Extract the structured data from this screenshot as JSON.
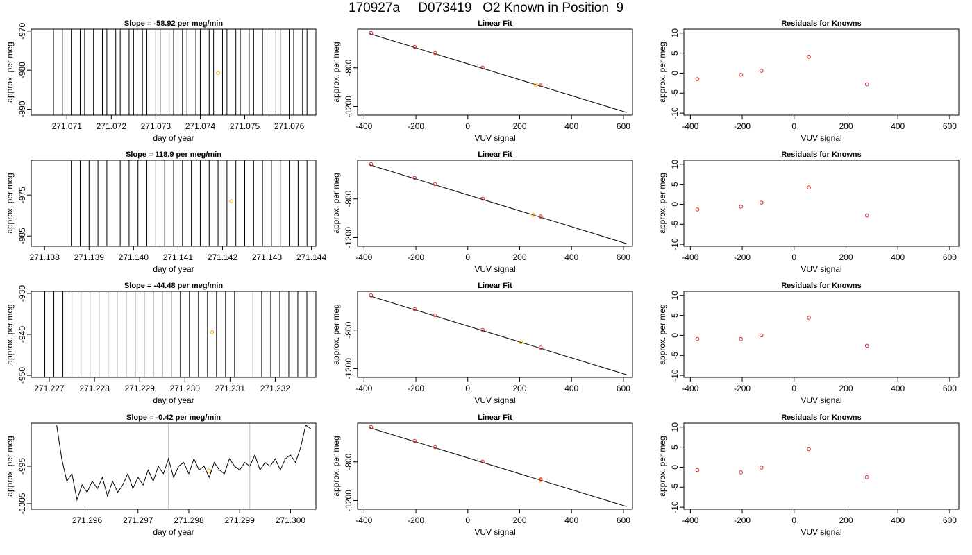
{
  "figure": {
    "title": "170927a     D073419   O2 Known in Position  9"
  },
  "colors": {
    "axis": "#000000",
    "trace": "#000000",
    "marker_open": "#ffa500",
    "marker_known": "#d62728",
    "vline": "#bebebe"
  },
  "chart_data": [
    {
      "type": "line",
      "row": 0,
      "col": 0,
      "title": "Slope =  -58.92  per meg/min",
      "xlabel": "day of year",
      "ylabel": "approx. per meg",
      "xlim": [
        271.0702,
        271.0766
      ],
      "ylim": [
        -991.5,
        -969.5
      ],
      "xticks": [
        "271.071",
        "271.072",
        "271.073",
        "271.074",
        "271.075",
        "271.076"
      ],
      "xtick_values": [
        271.071,
        271.072,
        271.073,
        271.074,
        271.075,
        271.076
      ],
      "yticks": [
        "-970",
        "-980",
        "-990"
      ],
      "ytick_values": [
        -970,
        -980,
        -990
      ],
      "vlines": [
        271.0735
      ],
      "marker": {
        "x": 271.0744,
        "y": -980.7
      },
      "trace_style": "spikes",
      "spike_x": [
        271.0707,
        271.0709,
        271.0711,
        271.0713,
        271.0714,
        271.0716,
        271.0718,
        271.0719,
        271.0721,
        271.0722,
        271.0724,
        271.0725,
        271.0727,
        271.0728,
        271.073,
        271.0731,
        271.0733,
        271.0734,
        271.0736,
        271.0737,
        271.0739,
        271.074,
        271.0742,
        271.0743,
        271.0745,
        271.0746,
        271.0748,
        271.0749,
        271.0751,
        271.0752,
        271.0754,
        271.0755,
        271.0757,
        271.0758,
        271.076,
        271.0761,
        271.0763,
        271.0764
      ]
    },
    {
      "type": "line",
      "row": 1,
      "col": 0,
      "title": "Slope =  118.9  per meg/min",
      "xlabel": "day of year",
      "ylabel": "approx. per meg",
      "xlim": [
        271.1377,
        271.1441
      ],
      "ylim": [
        -987.5,
        -966.5
      ],
      "xticks": [
        "271.138",
        "271.139",
        "271.140",
        "271.141",
        "271.142",
        "271.143",
        "271.144"
      ],
      "xtick_values": [
        271.138,
        271.139,
        271.14,
        271.141,
        271.142,
        271.143,
        271.144
      ],
      "yticks": [
        "-975",
        "-985"
      ],
      "ytick_values": [
        -975,
        -985
      ],
      "vlines": [],
      "marker": {
        "x": 271.1422,
        "y": -976.5
      },
      "trace_style": "spikes",
      "spike_x": [
        271.1386,
        271.1388,
        271.139,
        271.1392,
        271.1394,
        271.1397,
        271.1399,
        271.1401,
        271.1403,
        271.1405,
        271.1407,
        271.1409,
        271.1411,
        271.1413,
        271.1415,
        271.1417,
        271.1419,
        271.1421,
        271.1423,
        271.1425,
        271.1427,
        271.1429,
        271.1431,
        271.1433,
        271.1435,
        271.1437,
        271.1439
      ]
    },
    {
      "type": "line",
      "row": 2,
      "col": 0,
      "title": "Slope =  -44.48  per meg/min",
      "xlabel": "day of year",
      "ylabel": "approx. per meg",
      "xlim": [
        271.2266,
        271.2329
      ],
      "ylim": [
        -950.5,
        -929.5
      ],
      "xticks": [
        "271.227",
        "271.228",
        "271.229",
        "271.230",
        "271.231",
        "271.232"
      ],
      "xtick_values": [
        271.227,
        271.228,
        271.229,
        271.23,
        271.231,
        271.232
      ],
      "yticks": [
        "-930",
        "-940",
        "-950"
      ],
      "ytick_values": [
        -930,
        -940,
        -950
      ],
      "vlines": [
        271.2315
      ],
      "marker": {
        "x": 271.2306,
        "y": -939.5
      },
      "trace_style": "spikes",
      "spike_x": [
        271.2269,
        271.2271,
        271.2273,
        271.2275,
        271.2277,
        271.2279,
        271.2281,
        271.2283,
        271.2285,
        271.2287,
        271.2289,
        271.2291,
        271.2293,
        271.2295,
        271.2297,
        271.2299,
        271.2301,
        271.2303,
        271.2305,
        271.2307,
        271.2309,
        271.2311,
        271.2317,
        271.2319,
        271.2321,
        271.2323,
        271.2325,
        271.2327
      ]
    },
    {
      "type": "line",
      "row": 3,
      "col": 0,
      "title": "Slope =  -0.42  per meg/min",
      "xlabel": "day of year",
      "ylabel": "approx. per meg",
      "xlim": [
        271.2949,
        271.3005
      ],
      "ylim": [
        -1006.5,
        -983.5
      ],
      "xticks": [
        "271.296",
        "271.297",
        "271.298",
        "271.299",
        "271.300"
      ],
      "xtick_values": [
        271.296,
        271.297,
        271.298,
        271.299,
        271.3
      ],
      "yticks": [
        "-995",
        "-1005"
      ],
      "ytick_values": [
        -995,
        -1005
      ],
      "vlines": [
        271.2976,
        271.2992
      ],
      "marker": {
        "x": 271.2984,
        "y": -996.2
      },
      "trace_style": "wiggle",
      "trace": {
        "x": [
          271.2954,
          271.2955,
          271.2956,
          271.2957,
          271.2958,
          271.2959,
          271.296,
          271.2961,
          271.2962,
          271.2963,
          271.2964,
          271.2965,
          271.2966,
          271.2967,
          271.2968,
          271.2969,
          271.297,
          271.2971,
          271.2972,
          271.2973,
          271.2974,
          271.2975,
          271.2976,
          271.2977,
          271.2978,
          271.2979,
          271.298,
          271.2981,
          271.2982,
          271.2983,
          271.2984,
          271.2985,
          271.2986,
          271.2987,
          271.2988,
          271.2989,
          271.299,
          271.2991,
          271.2992,
          271.2993,
          271.2994,
          271.2995,
          271.2996,
          271.2997,
          271.2998,
          271.2999,
          271.3,
          271.3001,
          271.3002,
          271.3003,
          271.3004
        ],
        "y": [
          -984,
          -993,
          -999,
          -997,
          -1004,
          -1000,
          -1002,
          -999,
          -1001,
          -998,
          -1003,
          -999,
          -1002,
          -1000,
          -997,
          -1001,
          -998,
          -1000,
          -996,
          -999,
          -995,
          -997,
          -993,
          -998,
          -995,
          -994,
          -997,
          -993,
          -996,
          -995,
          -998,
          -994,
          -996,
          -997,
          -993,
          -995,
          -996,
          -994,
          -995,
          -992,
          -996,
          -994,
          -995,
          -993,
          -996,
          -993,
          -992,
          -994,
          -990,
          -984,
          -985
        ]
      }
    },
    {
      "type": "scatter",
      "col": 1,
      "title": "Linear Fit",
      "xlabel": "VUV signal",
      "ylabel": "approx. per meg",
      "xlim": [
        -425,
        635
      ],
      "ylim": [
        -1290,
        -400
      ],
      "xticks": [
        "-400",
        "-200",
        "0",
        "200",
        "400",
        "600"
      ],
      "xtick_values": [
        -400,
        -200,
        0,
        200,
        400,
        600
      ],
      "yticks": [
        "-800",
        "-1200"
      ],
      "ytick_values": [
        -800,
        -1200
      ],
      "line": {
        "x": [
          -380,
          612
        ],
        "y": [
          -446,
          -1262
        ]
      },
      "points_x": [
        -373,
        -205,
        -126,
        57,
        281
      ],
      "points_y": [
        -441,
        -583,
        -648,
        -798,
        -982
      ],
      "open_point_x": [
        262,
        252,
        205,
        281
      ]
    },
    {
      "type": "scatter",
      "col": 2,
      "title": "Residuals for Knowns",
      "xlabel": "VUV signal",
      "ylabel": "approx. per meg",
      "xlim": [
        -425,
        635
      ],
      "ylim": [
        -10.5,
        11
      ],
      "xticks": [
        "-400",
        "-200",
        "0",
        "200",
        "400",
        "600"
      ],
      "xtick_values": [
        -400,
        -200,
        0,
        200,
        400,
        600
      ],
      "yticks": [
        "10",
        "5",
        "0",
        "-5",
        "-10"
      ],
      "ytick_values": [
        10,
        5,
        0,
        -5,
        -10
      ],
      "points_x": [
        -373,
        -205,
        -126,
        57,
        281
      ],
      "rows_y": [
        [
          -1.5,
          -0.4,
          0.6,
          4.1,
          -2.8
        ],
        [
          -1.3,
          -0.6,
          0.4,
          4.2,
          -2.8
        ],
        [
          -0.9,
          -0.9,
          0.0,
          4.4,
          -2.6
        ],
        [
          -0.7,
          -1.3,
          -0.1,
          4.5,
          -2.5
        ]
      ]
    }
  ]
}
